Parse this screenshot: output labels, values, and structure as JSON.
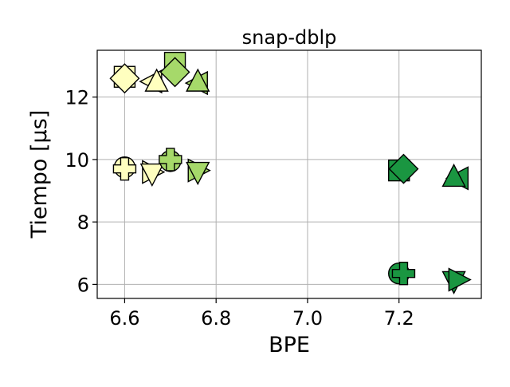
{
  "chart_data": {
    "type": "scatter",
    "title": "snap-dblp",
    "xlabel": "BPE",
    "ylabel": "Tiempo [μs]",
    "xlim": [
      6.54,
      7.38
    ],
    "ylim": [
      5.55,
      13.5
    ],
    "xticks": [
      6.6,
      6.8,
      7.0,
      7.2
    ],
    "xtick_labels": [
      "6.6",
      "6.8",
      "7.0",
      "7.2"
    ],
    "yticks": [
      6,
      8,
      10,
      12
    ],
    "ytick_labels": [
      "6",
      "8",
      "10",
      "12"
    ],
    "grid": true,
    "legend": false,
    "colors": {
      "lightest": "#ffffbf",
      "light": "#d9f0a3",
      "mid": "#a6d96a",
      "dark": "#1a9641"
    },
    "points": [
      {
        "x": 6.6,
        "y": 12.65,
        "marker": "square",
        "color": "#ffffbf"
      },
      {
        "x": 6.6,
        "y": 12.6,
        "marker": "diamond",
        "color": "#ffffbf"
      },
      {
        "x": 6.66,
        "y": 12.5,
        "marker": "triangle-left",
        "color": "#ffffbf"
      },
      {
        "x": 6.67,
        "y": 12.5,
        "marker": "triangle-up",
        "color": "#ffffbf"
      },
      {
        "x": 6.71,
        "y": 13.1,
        "marker": "square",
        "color": "#a6d96a"
      },
      {
        "x": 6.71,
        "y": 12.8,
        "marker": "diamond",
        "color": "#a6d96a"
      },
      {
        "x": 6.76,
        "y": 12.45,
        "marker": "triangle-left",
        "color": "#a6d96a"
      },
      {
        "x": 6.76,
        "y": 12.5,
        "marker": "triangle-up",
        "color": "#a6d96a"
      },
      {
        "x": 6.6,
        "y": 9.75,
        "marker": "circle",
        "color": "#ffffbf"
      },
      {
        "x": 6.6,
        "y": 9.7,
        "marker": "plus",
        "color": "#ffffbf"
      },
      {
        "x": 6.66,
        "y": 9.6,
        "marker": "triangle-right",
        "color": "#ffffbf"
      },
      {
        "x": 6.66,
        "y": 9.55,
        "marker": "triangle-down",
        "color": "#ffffbf"
      },
      {
        "x": 6.7,
        "y": 9.95,
        "marker": "circle",
        "color": "#a6d96a"
      },
      {
        "x": 6.7,
        "y": 10.0,
        "marker": "plus",
        "color": "#a6d96a"
      },
      {
        "x": 6.76,
        "y": 9.65,
        "marker": "triangle-right",
        "color": "#a6d96a"
      },
      {
        "x": 6.76,
        "y": 9.6,
        "marker": "triangle-down",
        "color": "#a6d96a"
      },
      {
        "x": 7.2,
        "y": 9.65,
        "marker": "square",
        "color": "#1a9641"
      },
      {
        "x": 7.21,
        "y": 9.7,
        "marker": "diamond",
        "color": "#1a9641"
      },
      {
        "x": 7.33,
        "y": 9.4,
        "marker": "triangle-left",
        "color": "#1a9641"
      },
      {
        "x": 7.32,
        "y": 9.45,
        "marker": "triangle-up",
        "color": "#1a9641"
      },
      {
        "x": 7.2,
        "y": 6.35,
        "marker": "circle",
        "color": "#1a9641"
      },
      {
        "x": 7.21,
        "y": 6.35,
        "marker": "plus",
        "color": "#1a9641"
      },
      {
        "x": 7.32,
        "y": 6.1,
        "marker": "triangle-down",
        "color": "#1a9641"
      },
      {
        "x": 7.33,
        "y": 6.15,
        "marker": "triangle-right",
        "color": "#1a9641"
      }
    ]
  }
}
